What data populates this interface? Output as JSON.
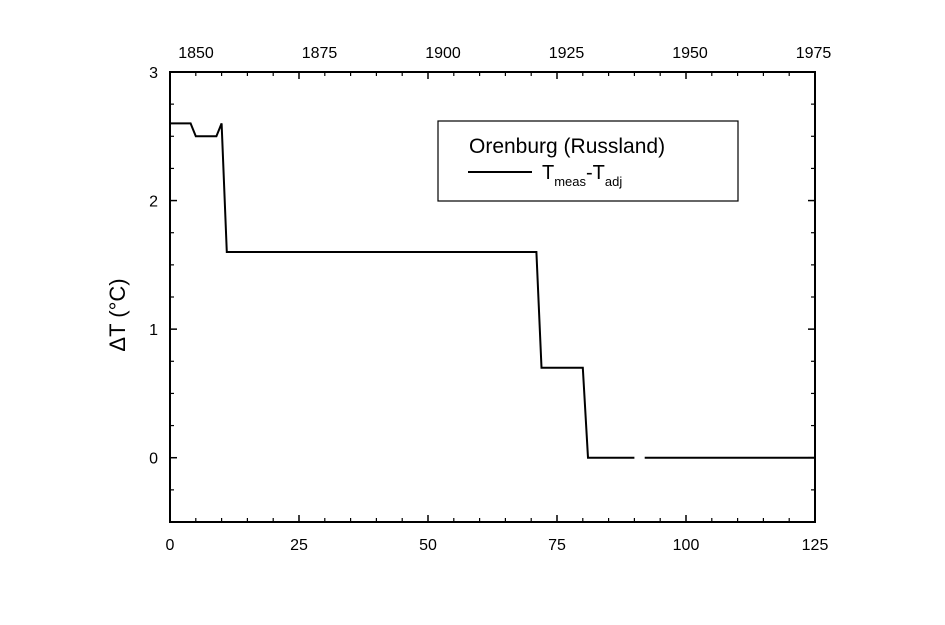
{
  "chart_data": {
    "type": "line",
    "title": "",
    "ylabel": "ΔT (°C)",
    "xlim": [
      0,
      125
    ],
    "ylim": [
      -0.5,
      3
    ],
    "x_ticks": [
      "0",
      "25",
      "50",
      "75",
      "100",
      "125"
    ],
    "y_ticks": [
      "0",
      "1",
      "2",
      "3"
    ],
    "top_axis_ticks": [
      "1850",
      "1875",
      "1900",
      "1925",
      "1950",
      "1975"
    ],
    "legend": {
      "title": "Orenburg (Russland)",
      "placement": "top-right",
      "entry": {
        "main1": "T",
        "sub1": "meas",
        "main2": "-T",
        "sub2": "adj"
      }
    },
    "grid": false,
    "series": [
      {
        "segments": [
          [
            [
              0,
              2.6
            ],
            [
              4,
              2.6
            ],
            [
              5,
              2.5
            ],
            [
              9,
              2.5
            ],
            [
              10,
              2.6
            ],
            [
              11,
              1.6
            ],
            [
              71,
              1.6
            ],
            [
              72,
              0.7
            ],
            [
              80,
              0.7
            ],
            [
              81,
              0.0
            ],
            [
              90,
              0.0
            ]
          ],
          [
            [
              92,
              0.0
            ],
            [
              125,
              0.0
            ]
          ]
        ]
      }
    ]
  }
}
